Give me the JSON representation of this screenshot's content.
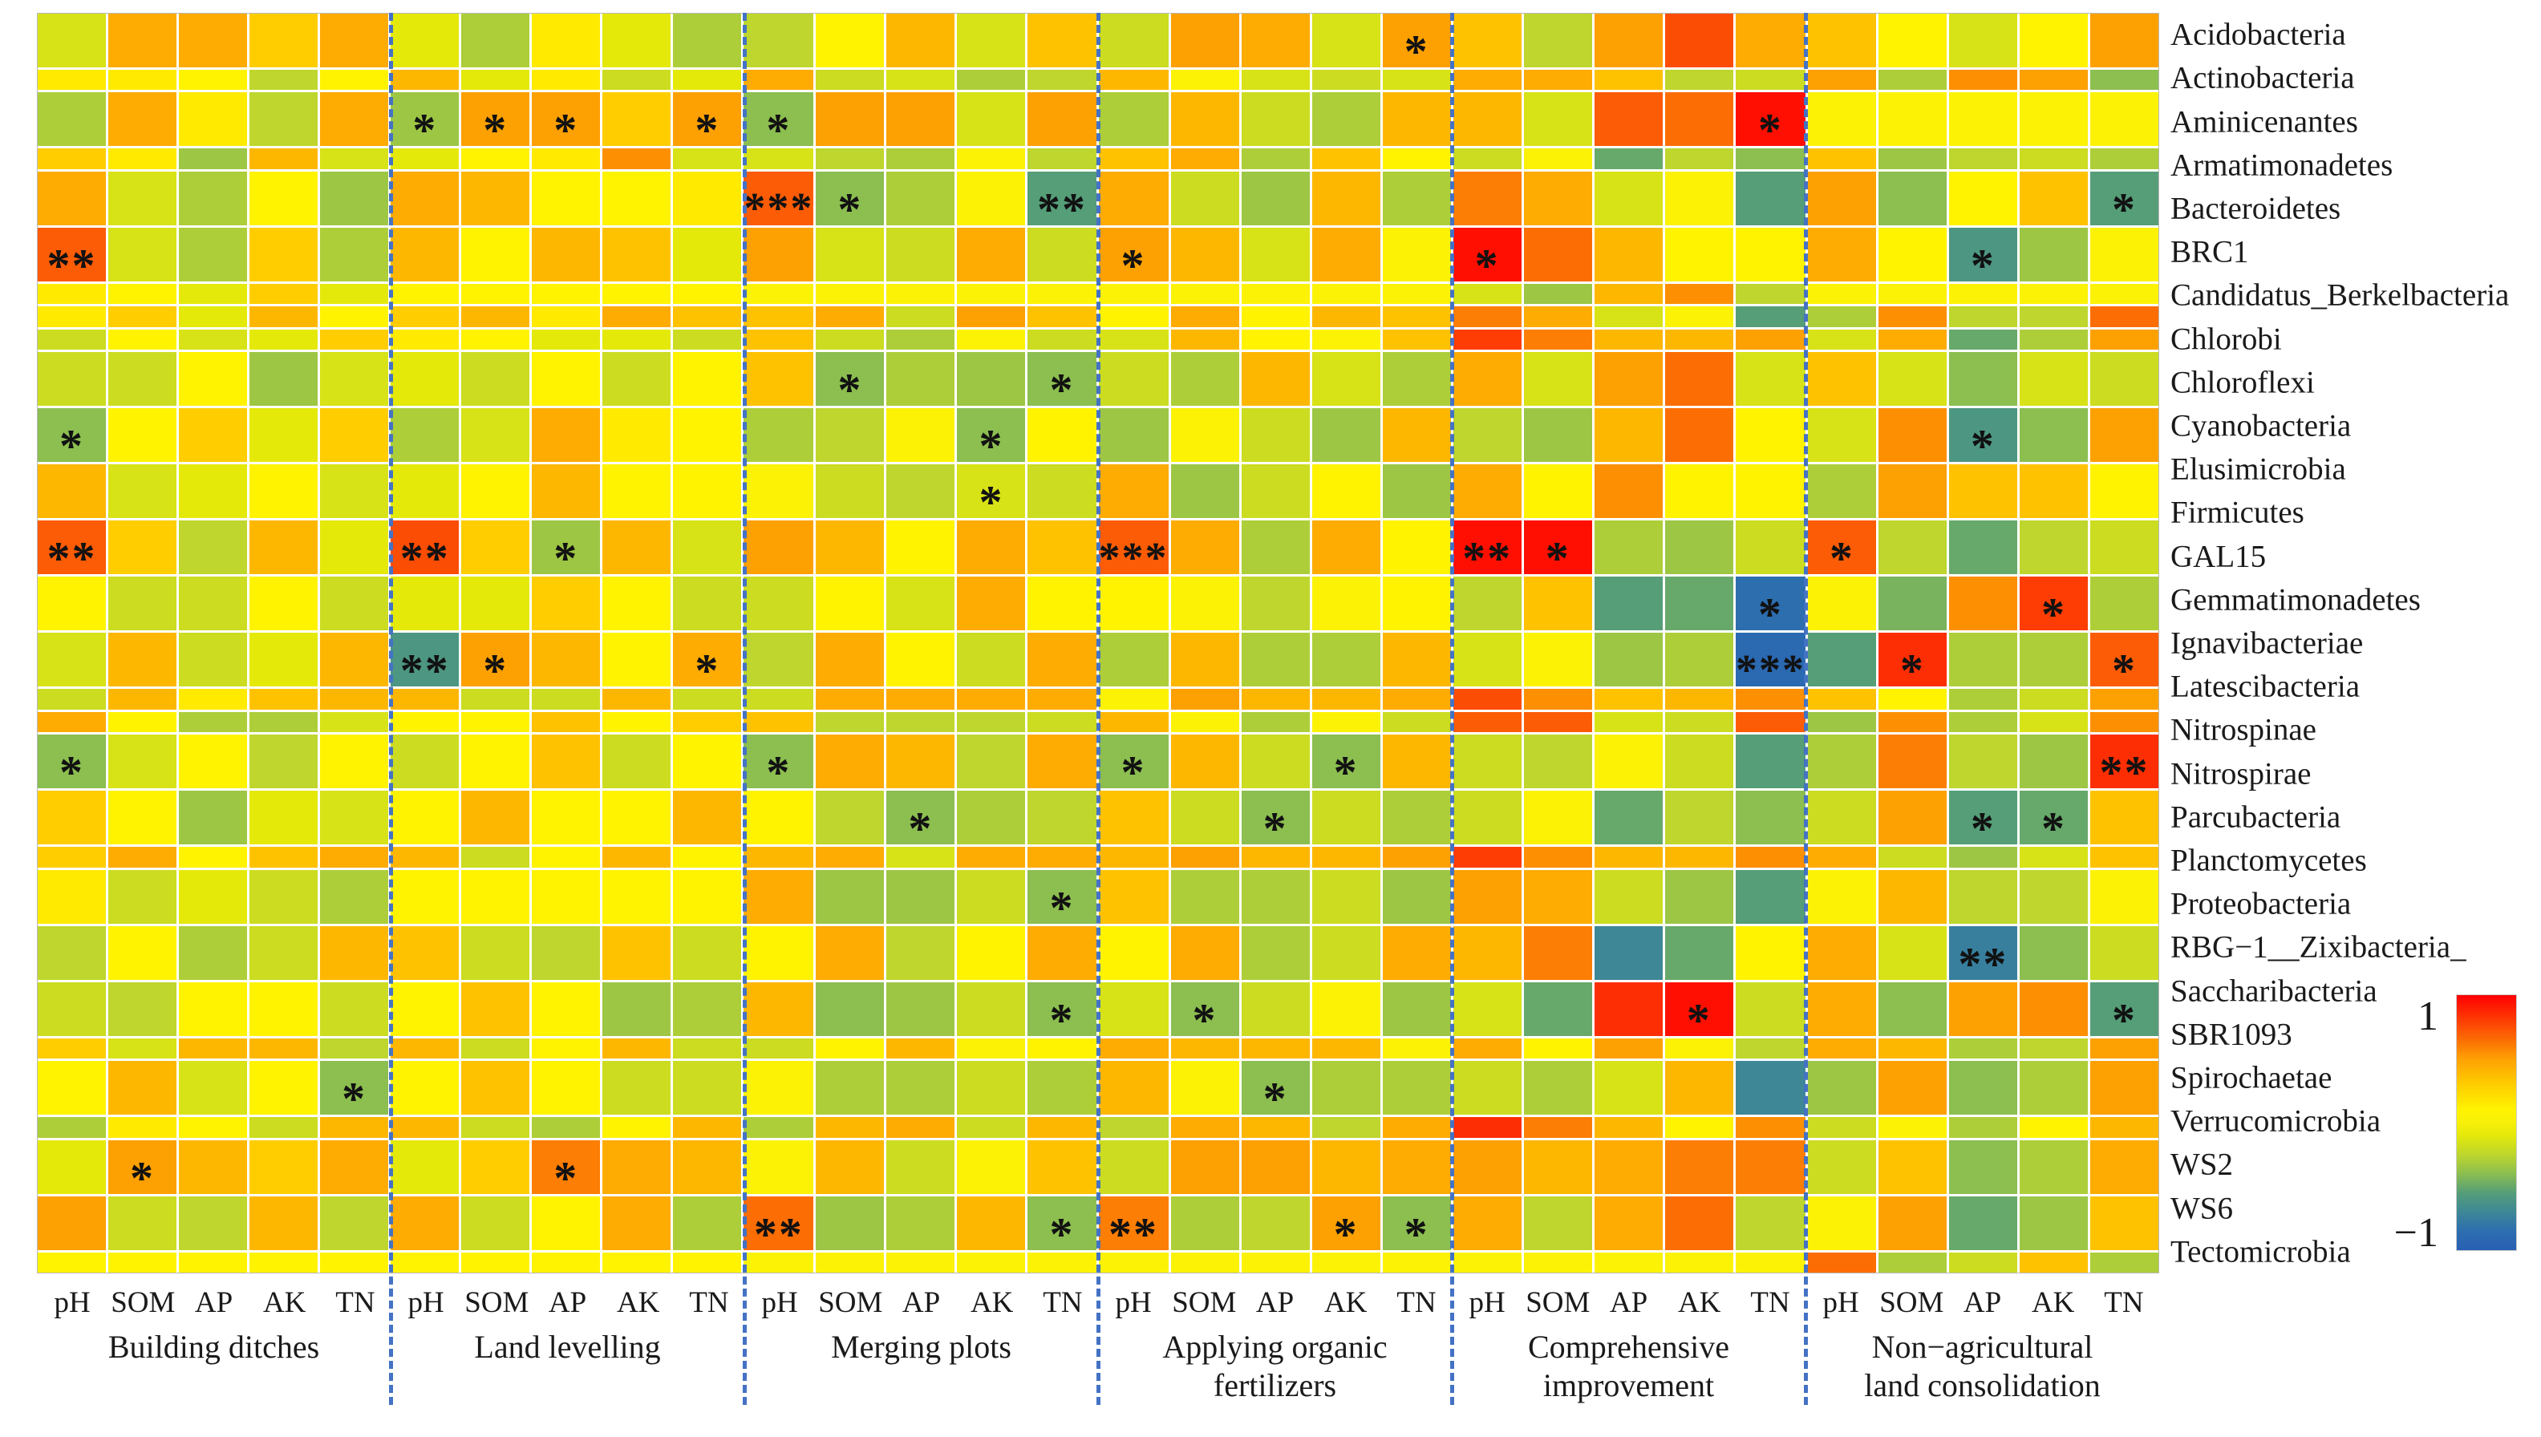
{
  "chart_data": {
    "type": "heatmap",
    "description": "Correlation heatmap between soil properties and bacterial phyla relative abundance under six land-consolidation treatments. Stars mark significance.",
    "value_range": [
      -1,
      1
    ],
    "colorbar": {
      "max_label": "1",
      "min_label": "−1"
    },
    "columns_per_group": [
      "pH",
      "SOM",
      "AP",
      "AK",
      "TN"
    ],
    "groups": [
      {
        "label": "Building ditches",
        "lines": [
          "Building ditches"
        ]
      },
      {
        "label": "Land levelling",
        "lines": [
          "Land levelling"
        ]
      },
      {
        "label": "Merging plots",
        "lines": [
          "Merging plots"
        ]
      },
      {
        "label": "Applying organic fertilizers",
        "lines": [
          "Applying organic",
          "fertilizers"
        ]
      },
      {
        "label": "Comprehensive improvement",
        "lines": [
          "Comprehensive",
          "improvement"
        ]
      },
      {
        "label": "Non−agricultural land consolidation",
        "lines": [
          "Non−agricultural",
          "land consolidation"
        ]
      }
    ],
    "rows": [
      "Acidobacteria",
      "Actinobacteria",
      "Aminicenantes",
      "Armatimonadetes",
      "Bacteroidetes",
      "BRC1",
      "Candidatus_Berkelbacteria",
      "Chlorobi",
      "Chloroflexi",
      "Cyanobacteria",
      "Elusimicrobia",
      "Firmicutes",
      "GAL15",
      "Gemmatimonadetes",
      "Ignavibacteriae",
      "Latescibacteria",
      "Nitrospinae",
      "Nitrospirae",
      "Parcubacteria",
      "Planctomycetes",
      "Proteobacteria",
      "RBG−1__Zixibacteria_",
      "Saccharibacteria",
      "SBR1093",
      "Spirochaetae",
      "Verrucomicrobia",
      "WS2",
      "WS6",
      "Tectomicrobia"
    ],
    "values": [
      [
        -0.15,
        0.45,
        0.45,
        0.3,
        0.45,
        -0.1,
        -0.3,
        0.15,
        -0.1,
        -0.3,
        -0.25,
        0.1,
        0.4,
        -0.15,
        0.35,
        -0.2,
        0.5,
        0.45,
        -0.15,
        0.5,
        0.35,
        -0.25,
        0.5,
        0.75,
        0.45,
        0.35,
        0.1,
        -0.15,
        0.1,
        0.5
      ],
      [
        0.15,
        0.15,
        0.1,
        -0.25,
        0.1,
        0.4,
        -0.1,
        0.15,
        -0.2,
        -0.1,
        0.45,
        -0.2,
        -0.15,
        -0.3,
        -0.25,
        0.4,
        0.05,
        -0.15,
        -0.2,
        -0.15,
        0.45,
        0.45,
        0.35,
        -0.25,
        -0.2,
        0.5,
        -0.3,
        0.55,
        0.5,
        -0.4
      ],
      [
        -0.3,
        0.45,
        0.15,
        -0.25,
        0.45,
        -0.35,
        0.5,
        0.5,
        0.3,
        0.5,
        -0.4,
        0.5,
        0.5,
        -0.15,
        0.5,
        -0.3,
        0.4,
        -0.2,
        -0.3,
        0.4,
        0.4,
        -0.15,
        0.7,
        0.65,
        0.95,
        0.05,
        0.05,
        0.05,
        0.05,
        0.05
      ],
      [
        0.3,
        0.15,
        -0.35,
        0.4,
        -0.15,
        -0.1,
        0.1,
        0.15,
        0.55,
        -0.15,
        -0.15,
        -0.25,
        -0.3,
        0.05,
        -0.25,
        0.35,
        0.45,
        -0.3,
        0.35,
        0.1,
        -0.2,
        0.05,
        -0.5,
        -0.25,
        -0.4,
        0.35,
        -0.35,
        -0.25,
        -0.2,
        -0.3
      ],
      [
        0.45,
        -0.15,
        -0.3,
        0.1,
        -0.35,
        0.45,
        0.4,
        0.1,
        0.1,
        0.15,
        0.7,
        -0.4,
        -0.3,
        0.05,
        -0.55,
        0.45,
        -0.2,
        -0.35,
        0.4,
        -0.3,
        0.6,
        0.45,
        -0.15,
        0.05,
        -0.55,
        0.5,
        -0.4,
        0.1,
        0.35,
        -0.55
      ],
      [
        0.7,
        -0.15,
        -0.3,
        0.3,
        -0.3,
        0.4,
        0.1,
        0.4,
        0.35,
        -0.1,
        0.5,
        -0.15,
        -0.2,
        0.45,
        -0.2,
        0.5,
        0.4,
        -0.15,
        0.45,
        0.05,
        0.95,
        0.65,
        0.4,
        0.1,
        0.1,
        0.45,
        0.1,
        -0.6,
        -0.35,
        0.05
      ],
      [
        0.15,
        0.1,
        -0.1,
        0.3,
        -0.1,
        0.1,
        0.1,
        0.1,
        0.1,
        0.1,
        0.05,
        0.05,
        0.05,
        0.05,
        0.05,
        0.05,
        0.05,
        0.05,
        0.05,
        0.05,
        -0.15,
        -0.35,
        0.4,
        0.55,
        -0.25,
        0.05,
        0.05,
        0.05,
        0.05,
        0.05
      ],
      [
        0.15,
        0.3,
        -0.1,
        0.4,
        0.1,
        0.3,
        0.4,
        0.15,
        0.45,
        0.35,
        0.35,
        0.45,
        -0.2,
        0.5,
        0.35,
        0.1,
        0.45,
        0.1,
        0.4,
        0.35,
        0.6,
        0.45,
        -0.15,
        0.05,
        -0.55,
        -0.3,
        0.55,
        -0.25,
        -0.25,
        0.65
      ],
      [
        -0.2,
        0.1,
        -0.15,
        -0.1,
        0.3,
        0.15,
        0.1,
        -0.1,
        -0.1,
        -0.2,
        0.35,
        -0.2,
        -0.3,
        0.05,
        -0.2,
        -0.15,
        0.4,
        0.1,
        0.05,
        0.35,
        0.8,
        0.6,
        0.4,
        0.4,
        0.5,
        -0.15,
        0.45,
        -0.5,
        -0.3,
        0.5
      ],
      [
        -0.2,
        -0.2,
        0.1,
        -0.35,
        -0.15,
        -0.1,
        -0.2,
        0.1,
        -0.2,
        0.1,
        0.35,
        -0.4,
        -0.3,
        -0.35,
        -0.4,
        -0.2,
        -0.3,
        0.4,
        -0.15,
        -0.3,
        0.45,
        -0.15,
        0.5,
        0.65,
        -0.15,
        0.35,
        -0.15,
        -0.4,
        -0.15,
        -0.2
      ],
      [
        -0.4,
        0.1,
        0.3,
        -0.1,
        0.3,
        -0.3,
        -0.15,
        0.45,
        0.15,
        0.1,
        -0.3,
        -0.25,
        0.05,
        -0.4,
        0.1,
        -0.35,
        0.05,
        -0.2,
        -0.35,
        0.4,
        -0.25,
        -0.35,
        0.4,
        0.65,
        0.1,
        -0.15,
        0.55,
        -0.6,
        -0.4,
        0.5
      ],
      [
        0.4,
        -0.15,
        -0.1,
        0.1,
        -0.15,
        -0.1,
        0.1,
        0.4,
        0.1,
        0.1,
        0.05,
        -0.2,
        -0.25,
        -0.15,
        -0.2,
        0.45,
        -0.35,
        -0.2,
        0.1,
        -0.35,
        0.45,
        0.1,
        0.55,
        0.1,
        0.1,
        -0.3,
        0.5,
        0.35,
        0.35,
        0.1
      ],
      [
        0.7,
        0.3,
        -0.25,
        0.4,
        -0.1,
        0.75,
        0.3,
        -0.35,
        0.4,
        -0.15,
        0.5,
        0.4,
        0.1,
        0.45,
        0.35,
        0.7,
        0.45,
        -0.3,
        0.45,
        0.1,
        0.95,
        0.95,
        -0.3,
        -0.35,
        -0.2,
        0.7,
        -0.25,
        -0.5,
        -0.25,
        -0.2
      ],
      [
        0.1,
        -0.2,
        -0.2,
        0.1,
        -0.2,
        -0.1,
        -0.1,
        0.3,
        0.1,
        -0.2,
        -0.2,
        0.1,
        -0.15,
        0.45,
        0.1,
        0.1,
        0.05,
        -0.25,
        0.05,
        0.1,
        -0.25,
        0.35,
        -0.55,
        -0.5,
        -0.85,
        0.05,
        -0.45,
        0.55,
        0.8,
        -0.3
      ],
      [
        -0.15,
        0.4,
        -0.2,
        -0.1,
        0.4,
        -0.6,
        0.5,
        0.4,
        0.1,
        0.45,
        -0.25,
        0.45,
        0.1,
        -0.2,
        0.45,
        -0.3,
        0.4,
        -0.3,
        -0.3,
        0.4,
        -0.15,
        0.05,
        -0.35,
        -0.3,
        -0.9,
        -0.55,
        0.85,
        -0.3,
        -0.3,
        0.7
      ],
      [
        -0.2,
        0.4,
        0.15,
        0.35,
        0.4,
        0.4,
        -0.2,
        -0.2,
        0.4,
        -0.2,
        -0.2,
        0.45,
        0.45,
        0.45,
        0.45,
        0.05,
        0.5,
        0.4,
        0.4,
        0.45,
        0.75,
        0.55,
        0.35,
        0.4,
        0.55,
        0.35,
        0.1,
        -0.3,
        -0.2,
        0.5
      ],
      [
        0.45,
        0.1,
        -0.3,
        -0.3,
        -0.15,
        0.1,
        0.1,
        0.35,
        0.1,
        0.3,
        0.35,
        -0.25,
        -0.25,
        -0.25,
        -0.2,
        0.4,
        0.05,
        -0.3,
        0.05,
        -0.2,
        0.7,
        0.7,
        -0.15,
        -0.2,
        0.7,
        -0.35,
        0.55,
        -0.3,
        -0.15,
        0.55
      ],
      [
        -0.4,
        -0.15,
        0.1,
        -0.25,
        0.1,
        -0.2,
        0.1,
        0.35,
        -0.2,
        0.1,
        -0.4,
        0.45,
        0.4,
        -0.25,
        0.45,
        -0.4,
        0.4,
        -0.2,
        -0.4,
        0.4,
        -0.2,
        -0.25,
        0.05,
        -0.2,
        -0.55,
        -0.3,
        0.6,
        -0.25,
        -0.35,
        0.85
      ],
      [
        0.3,
        0.1,
        -0.35,
        -0.1,
        -0.15,
        0.1,
        0.4,
        0.1,
        0.1,
        0.4,
        0.1,
        -0.25,
        -0.4,
        -0.3,
        -0.25,
        0.35,
        -0.2,
        -0.4,
        -0.2,
        -0.3,
        -0.2,
        0.05,
        -0.5,
        -0.25,
        -0.4,
        -0.2,
        0.5,
        -0.55,
        -0.5,
        0.35
      ],
      [
        0.3,
        0.45,
        0.1,
        0.35,
        0.45,
        0.4,
        -0.2,
        0.1,
        0.4,
        0.1,
        0.4,
        0.45,
        -0.15,
        0.45,
        0.45,
        0.4,
        0.5,
        0.4,
        0.4,
        0.5,
        0.8,
        0.55,
        0.4,
        0.4,
        0.55,
        0.45,
        -0.2,
        -0.35,
        -0.15,
        0.35
      ],
      [
        0.15,
        -0.2,
        -0.1,
        -0.2,
        -0.3,
        0.1,
        0.1,
        0.1,
        0.1,
        0.1,
        0.45,
        -0.35,
        -0.35,
        -0.2,
        -0.4,
        0.35,
        -0.3,
        -0.3,
        -0.2,
        -0.35,
        0.5,
        0.45,
        -0.2,
        -0.35,
        -0.55,
        0.05,
        0.4,
        -0.25,
        -0.25,
        0.05
      ],
      [
        -0.25,
        0.1,
        -0.3,
        -0.2,
        0.4,
        0.35,
        -0.2,
        -0.25,
        0.35,
        -0.2,
        0.1,
        0.45,
        -0.25,
        0.1,
        0.45,
        0.1,
        0.45,
        -0.3,
        -0.2,
        0.45,
        0.4,
        0.6,
        -0.7,
        -0.5,
        0.1,
        0.45,
        -0.15,
        -0.75,
        -0.4,
        -0.2
      ],
      [
        -0.2,
        -0.25,
        0.1,
        0.1,
        -0.2,
        0.1,
        0.35,
        0.1,
        -0.35,
        -0.3,
        0.4,
        -0.4,
        -0.35,
        -0.2,
        -0.4,
        -0.15,
        -0.4,
        -0.2,
        0.05,
        -0.35,
        -0.15,
        -0.5,
        0.85,
        0.95,
        -0.2,
        0.45,
        -0.4,
        0.5,
        0.55,
        -0.55
      ],
      [
        0.3,
        -0.15,
        0.4,
        0.4,
        -0.25,
        0.4,
        -0.2,
        0.1,
        0.4,
        -0.2,
        -0.2,
        0.1,
        0.4,
        0.05,
        0.1,
        0.45,
        0.4,
        0.4,
        0.4,
        0.05,
        0.45,
        0.1,
        0.5,
        0.05,
        -0.25,
        0.45,
        0.4,
        -0.3,
        -0.25,
        0.5
      ],
      [
        0.1,
        0.4,
        -0.15,
        0.1,
        -0.4,
        0.1,
        0.35,
        0.1,
        -0.2,
        -0.2,
        0.05,
        -0.3,
        -0.3,
        -0.2,
        -0.3,
        0.4,
        0.05,
        -0.4,
        -0.3,
        -0.3,
        -0.2,
        -0.3,
        -0.15,
        0.4,
        -0.7,
        -0.35,
        0.5,
        -0.4,
        -0.3,
        0.5
      ],
      [
        -0.3,
        0.15,
        0.1,
        -0.2,
        0.4,
        0.4,
        -0.2,
        -0.3,
        0.1,
        0.4,
        -0.3,
        0.4,
        0.45,
        -0.2,
        0.4,
        -0.25,
        0.45,
        0.4,
        -0.25,
        0.45,
        0.85,
        0.6,
        0.4,
        0.1,
        0.55,
        -0.2,
        0.05,
        -0.3,
        0.1,
        0.4
      ],
      [
        -0.1,
        0.5,
        0.4,
        0.3,
        0.45,
        -0.1,
        0.3,
        0.6,
        0.45,
        0.4,
        0.05,
        0.4,
        -0.2,
        0.05,
        0.35,
        -0.2,
        0.5,
        0.5,
        0.4,
        0.45,
        0.5,
        0.4,
        0.45,
        0.6,
        0.6,
        -0.2,
        0.35,
        -0.4,
        -0.3,
        0.45
      ],
      [
        0.5,
        -0.2,
        -0.25,
        0.4,
        -0.25,
        0.45,
        -0.2,
        0.1,
        0.45,
        -0.3,
        0.65,
        -0.35,
        -0.3,
        0.4,
        -0.4,
        0.6,
        -0.3,
        -0.25,
        0.5,
        -0.4,
        0.45,
        -0.25,
        0.45,
        0.65,
        -0.25,
        0.05,
        0.5,
        -0.5,
        -0.35,
        0.35
      ],
      [
        0.1,
        0.1,
        0.1,
        0.1,
        0.1,
        0.1,
        0.1,
        0.1,
        0.1,
        0.1,
        0.05,
        0.05,
        0.05,
        0.05,
        0.05,
        0.05,
        0.05,
        0.05,
        0.05,
        0.05,
        0.05,
        0.05,
        0.05,
        0.05,
        0.05,
        0.65,
        -0.3,
        -0.2,
        0.35,
        -0.3
      ]
    ],
    "stars": [
      {
        "19": "*"
      },
      {},
      {
        "5": "*",
        "6": "*",
        "7": "*",
        "9": "*",
        "10": "*",
        "24": "*"
      },
      {},
      {
        "10": "***",
        "11": "*",
        "14": "**",
        "29": "*"
      },
      {
        "0": "**",
        "15": "*",
        "20": "*",
        "27": "*"
      },
      {},
      {},
      {},
      {
        "11": "*",
        "14": "*"
      },
      {
        "0": "*",
        "13": "*",
        "27": "*"
      },
      {
        "13": "*"
      },
      {
        "0": "**",
        "5": "**",
        "7": "*",
        "15": "***",
        "20": "**",
        "21": "*",
        "25": "*"
      },
      {
        "24": "*",
        "28": "*"
      },
      {
        "5": "**",
        "6": "*",
        "9": "*",
        "24": "***",
        "26": "*",
        "29": "*"
      },
      {},
      {},
      {
        "0": "*",
        "10": "*",
        "15": "*",
        "18": "*",
        "29": "**"
      },
      {
        "12": "*",
        "17": "*",
        "27": "*",
        "28": "*"
      },
      {},
      {
        "14": "*"
      },
      {
        "27": "**"
      },
      {
        "14": "*",
        "16": "*",
        "23": "*",
        "29": "*"
      },
      {},
      {
        "4": "*",
        "17": "*"
      },
      {},
      {
        "1": "*",
        "7": "*"
      },
      {
        "10": "**",
        "14": "*",
        "15": "**",
        "18": "*",
        "19": "*"
      },
      {}
    ],
    "style": {
      "divider_color": "#4472c4",
      "star_color": "#111111",
      "colormap_stops": [
        [
          -1.0,
          40,
          95,
          180
        ],
        [
          -0.85,
          45,
          110,
          175
        ],
        [
          -0.7,
          62,
          135,
          150
        ],
        [
          -0.55,
          85,
          158,
          120
        ],
        [
          -0.4,
          140,
          190,
          80
        ],
        [
          -0.25,
          190,
          214,
          45
        ],
        [
          -0.1,
          228,
          233,
          10
        ],
        [
          0.0,
          248,
          240,
          10
        ],
        [
          0.1,
          255,
          243,
          0
        ],
        [
          0.3,
          255,
          205,
          0
        ],
        [
          0.5,
          253,
          160,
          2
        ],
        [
          0.7,
          252,
          92,
          5
        ],
        [
          1.0,
          254,
          0,
          0
        ]
      ]
    }
  }
}
